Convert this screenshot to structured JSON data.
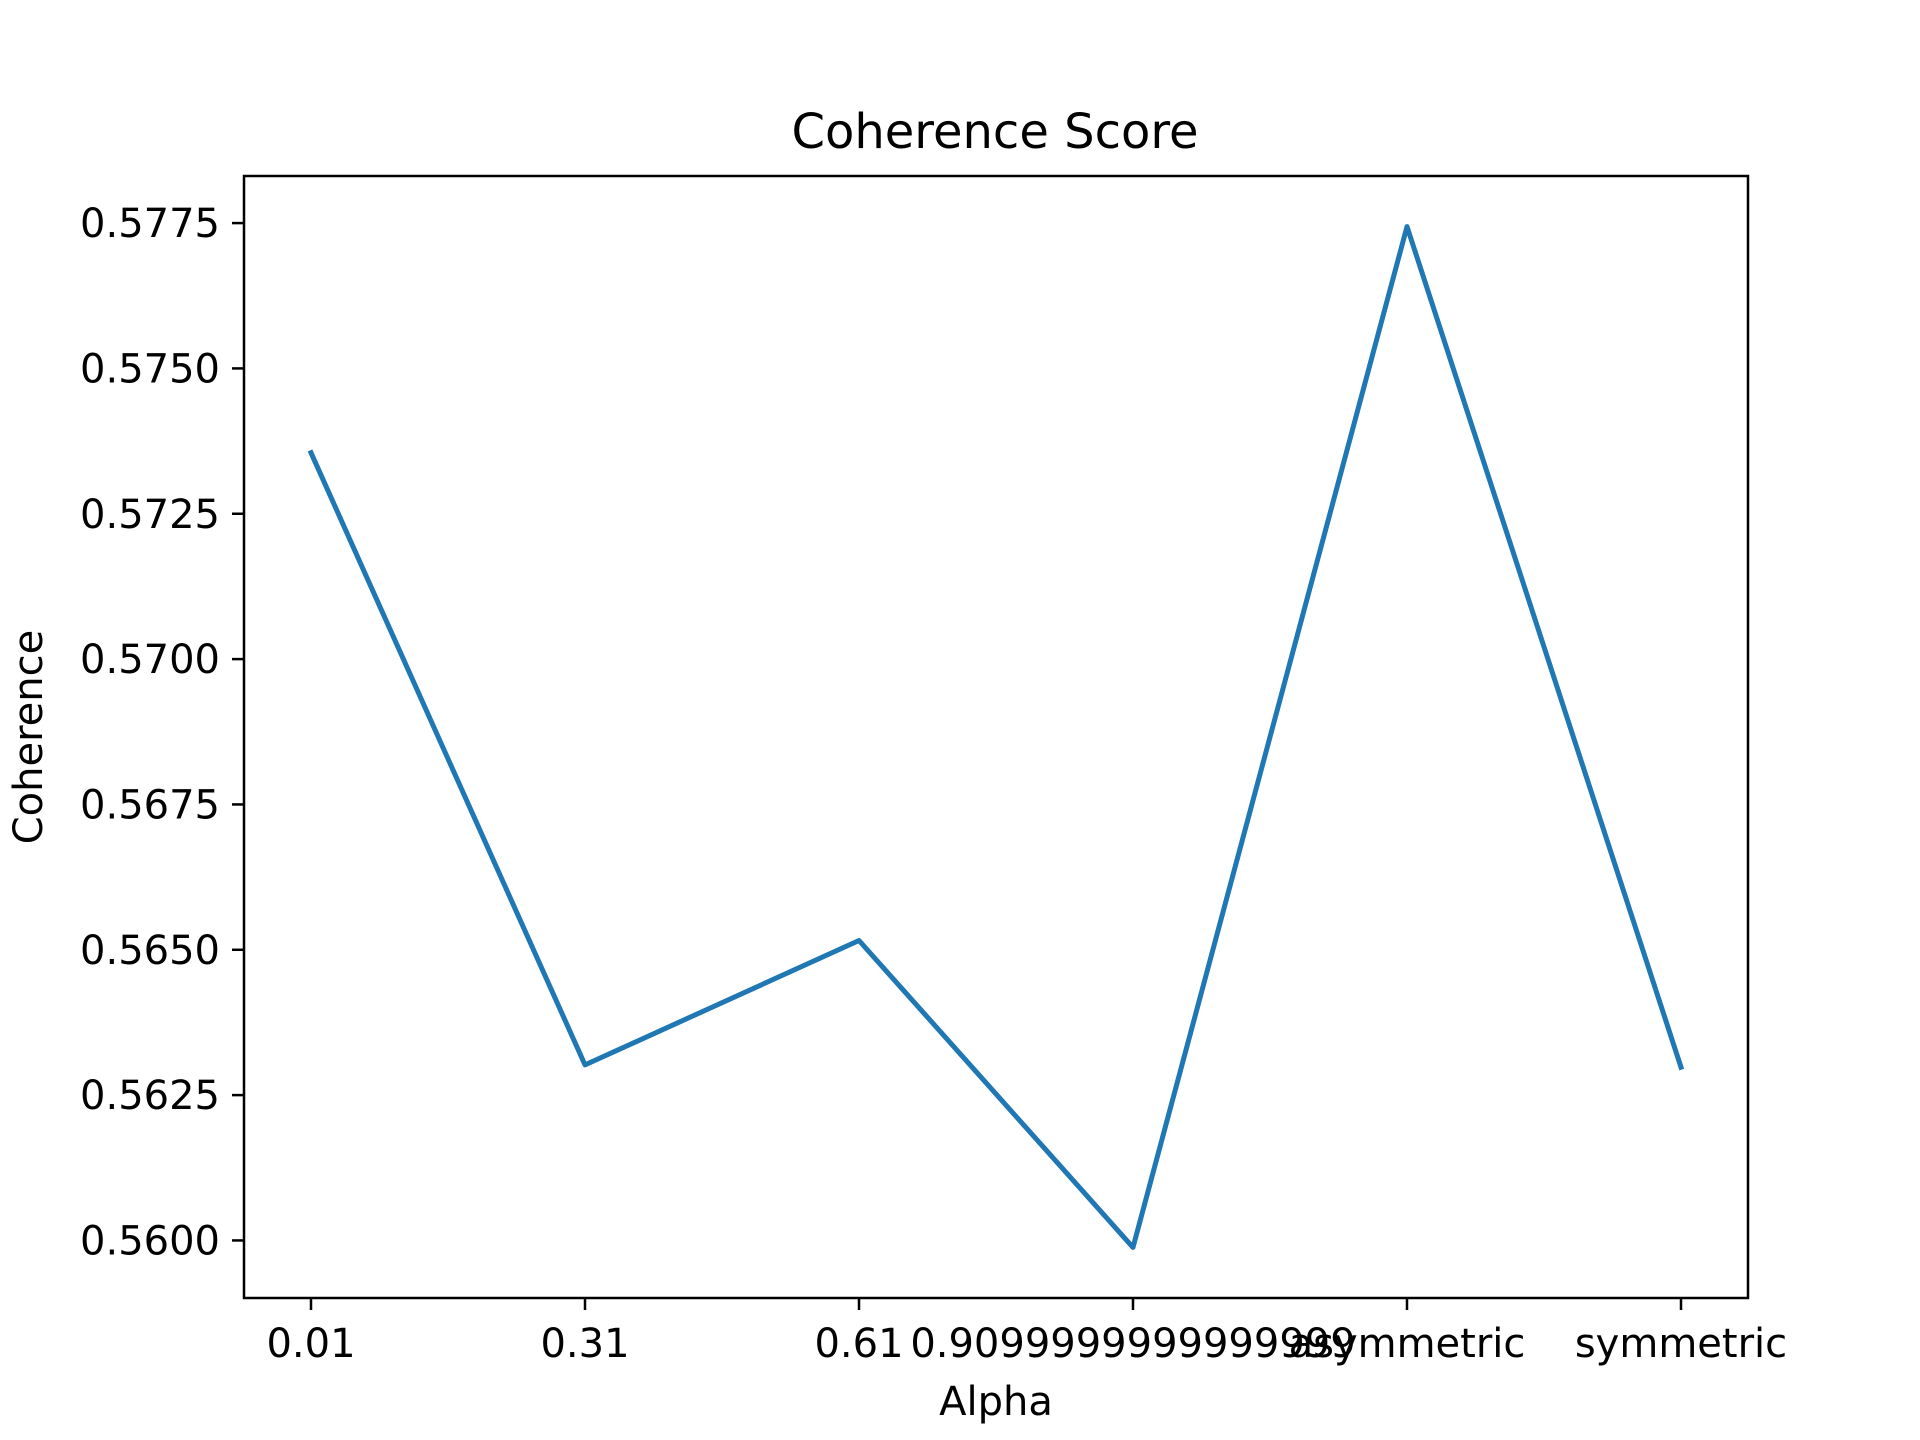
{
  "chart_data": {
    "type": "line",
    "title": "Coherence Score",
    "xlabel": "Alpha",
    "ylabel": "Coherence",
    "categories": [
      "0.01",
      "0.31",
      "0.61",
      "0.9099999999999999",
      "asymmetric",
      "symmetric"
    ],
    "series": [
      {
        "values": [
          0.57355,
          0.56302,
          0.56516,
          0.55988,
          0.57744,
          0.56298
        ],
        "color": "#1f77b4"
      }
    ],
    "yticks": [
      0.56,
      0.5625,
      0.565,
      0.5675,
      0.57,
      0.5725,
      0.575,
      0.5775
    ],
    "ytick_labels": [
      "0.5600",
      "0.5625",
      "0.5650",
      "0.5675",
      "0.5700",
      "0.5725",
      "0.5750",
      "0.5775"
    ],
    "ylim": [
      0.55901,
      0.57831
    ],
    "grid": false,
    "legend": "none"
  }
}
